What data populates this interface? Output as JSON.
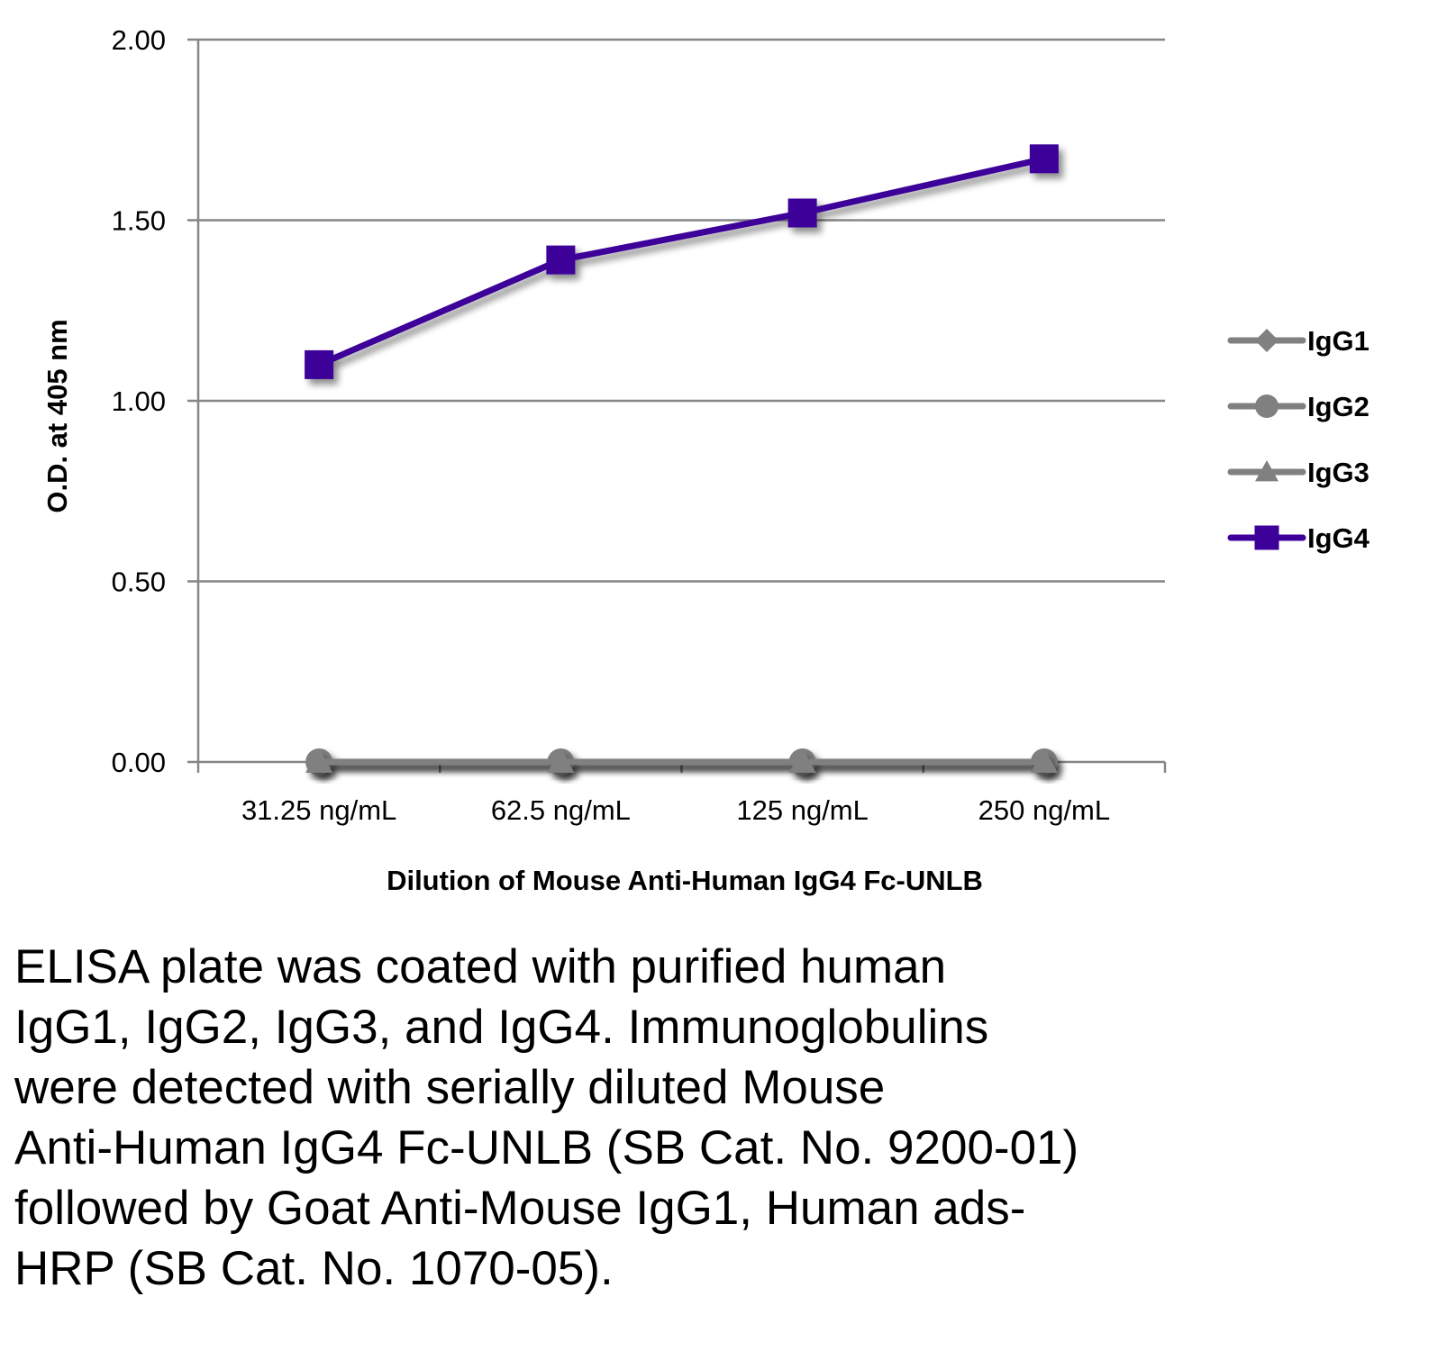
{
  "chart_data": {
    "type": "line",
    "title": "",
    "xlabel": "Dilution of Mouse Anti-Human IgG4 Fc-UNLB",
    "ylabel": "O.D. at 405 nm",
    "categories": [
      "31.25 ng/mL",
      "62.5 ng/mL",
      "125 ng/mL",
      "250 ng/mL"
    ],
    "ylim": [
      0,
      2.0
    ],
    "yticks": [
      "0.00",
      "0.50",
      "1.00",
      "1.50",
      "2.00"
    ],
    "ytick_values": [
      0,
      0.5,
      1.0,
      1.5,
      2.0
    ],
    "grid": "horizontal",
    "legend_position": "right",
    "series": [
      {
        "name": "IgG1",
        "marker": "diamond",
        "color": "#808080",
        "values": [
          0.0,
          0.0,
          0.0,
          0.0
        ]
      },
      {
        "name": "IgG2",
        "marker": "circle",
        "color": "#808080",
        "values": [
          0.0,
          0.0,
          0.0,
          0.0
        ]
      },
      {
        "name": "IgG3",
        "marker": "triangle",
        "color": "#808080",
        "values": [
          0.0,
          0.0,
          0.0,
          0.0
        ]
      },
      {
        "name": "IgG4",
        "marker": "square",
        "color": "#3d0099",
        "values": [
          1.1,
          1.39,
          1.52,
          1.67
        ]
      }
    ]
  },
  "caption": {
    "lines": [
      "ELISA plate was coated with purified human",
      "IgG1, IgG2, IgG3, and IgG4.  Immunoglobulins",
      "were detected with serially diluted Mouse",
      "Anti-Human IgG4 Fc-UNLB (SB Cat. No. 9200-01)",
      "followed by Goat Anti-Mouse IgG1, Human ads-",
      "HRP (SB Cat. No. 1070-05)."
    ]
  }
}
